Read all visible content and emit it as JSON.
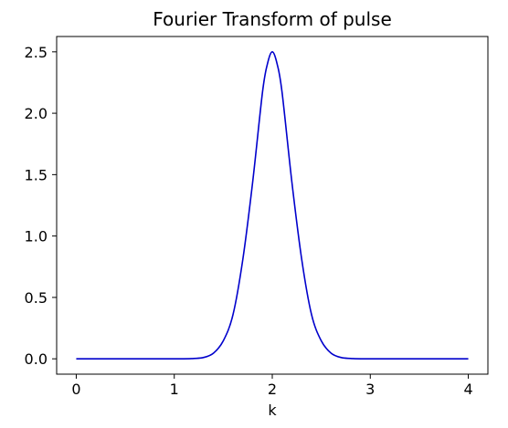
{
  "chart_data": {
    "type": "line",
    "title": "Fourier Transform of pulse",
    "xlabel": "k",
    "ylabel": "",
    "xlim": [
      -0.2,
      4.2
    ],
    "ylim": [
      -0.125,
      2.625
    ],
    "xticks": [
      0,
      1,
      2,
      3,
      4
    ],
    "xtick_labels": [
      "0",
      "1",
      "2",
      "3",
      "4"
    ],
    "yticks": [
      0.0,
      0.5,
      1.0,
      1.5,
      2.0,
      2.5
    ],
    "ytick_labels": [
      "0.0",
      "0.5",
      "1.0",
      "1.5",
      "2.0",
      "2.5"
    ],
    "grid": false,
    "legend": "none",
    "series": [
      {
        "color": "#0000cc",
        "x": [
          0.0,
          1.0,
          1.2,
          1.3,
          1.4,
          1.5,
          1.6,
          1.7,
          1.8,
          1.9,
          1.95,
          2.0,
          2.05,
          2.1,
          2.2,
          2.3,
          2.4,
          2.5,
          2.6,
          2.7,
          2.8,
          3.0,
          4.0
        ],
        "y": [
          0.0,
          0.0,
          0.003,
          0.011,
          0.046,
          0.146,
          0.362,
          0.812,
          1.44,
          2.17,
          2.4,
          2.5,
          2.4,
          2.17,
          1.44,
          0.812,
          0.362,
          0.146,
          0.046,
          0.011,
          0.003,
          0.0,
          0.0
        ]
      }
    ]
  }
}
